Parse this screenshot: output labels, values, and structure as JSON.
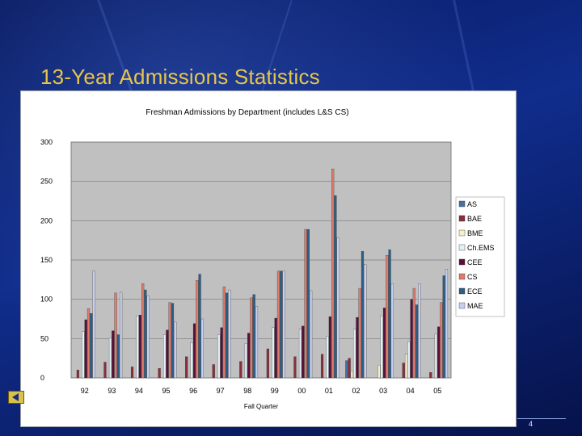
{
  "slide": {
    "title": "13-Year Admissions Statistics",
    "page_number": "4"
  },
  "colors": {
    "background": "#0a1e6e",
    "title": "#e8c64a",
    "plot_area": "#c0c0c0"
  },
  "chart_data": {
    "type": "bar",
    "title": "Freshman Admissions by Department (includes L&S CS)",
    "xlabel": "Fall Quarter",
    "ylabel": "",
    "ylim": [
      0,
      300
    ],
    "yticks": [
      0,
      50,
      100,
      150,
      200,
      250,
      300
    ],
    "grid": true,
    "legend_position": "right",
    "categories": [
      "92",
      "93",
      "94",
      "95",
      "96",
      "97",
      "98",
      "99",
      "00",
      "01",
      "02",
      "03",
      "04",
      "05"
    ],
    "series": [
      {
        "name": "AS",
        "color": "#4a6fa5",
        "values": [
          0,
          0,
          0,
          0,
          0,
          0,
          0,
          0,
          0,
          0,
          22,
          0,
          0,
          0
        ]
      },
      {
        "name": "BAE",
        "color": "#8b2e3c",
        "values": [
          10,
          20,
          14,
          12,
          27,
          17,
          21,
          37,
          27,
          30,
          25,
          0,
          19,
          7
        ]
      },
      {
        "name": "BME",
        "color": "#f5f0c8",
        "values": [
          0,
          0,
          0,
          0,
          0,
          0,
          0,
          0,
          0,
          0,
          9,
          16,
          30,
          0
        ]
      },
      {
        "name": "Ch.EMS",
        "color": "#e2f1f6",
        "values": [
          59,
          51,
          79,
          55,
          45,
          55,
          44,
          64,
          62,
          53,
          62,
          79,
          46,
          56
        ]
      },
      {
        "name": "CEE",
        "color": "#5a0f3a",
        "values": [
          74,
          60,
          80,
          61,
          69,
          64,
          57,
          76,
          66,
          78,
          77,
          89,
          100,
          65
        ]
      },
      {
        "name": "CS",
        "color": "#e07a6a",
        "values": [
          88,
          108,
          120,
          96,
          124,
          116,
          102,
          136,
          189,
          266,
          114,
          156,
          114,
          96
        ]
      },
      {
        "name": "ECE",
        "color": "#2a5f8a",
        "values": [
          82,
          55,
          112,
          95,
          132,
          108,
          106,
          136,
          189,
          232,
          161,
          163,
          93,
          130
        ]
      },
      {
        "name": "MAE",
        "color": "#c8d0f0",
        "values": [
          136,
          109,
          104,
          71,
          75,
          112,
          91,
          136,
          111,
          178,
          144,
          120,
          120,
          138
        ]
      }
    ]
  }
}
